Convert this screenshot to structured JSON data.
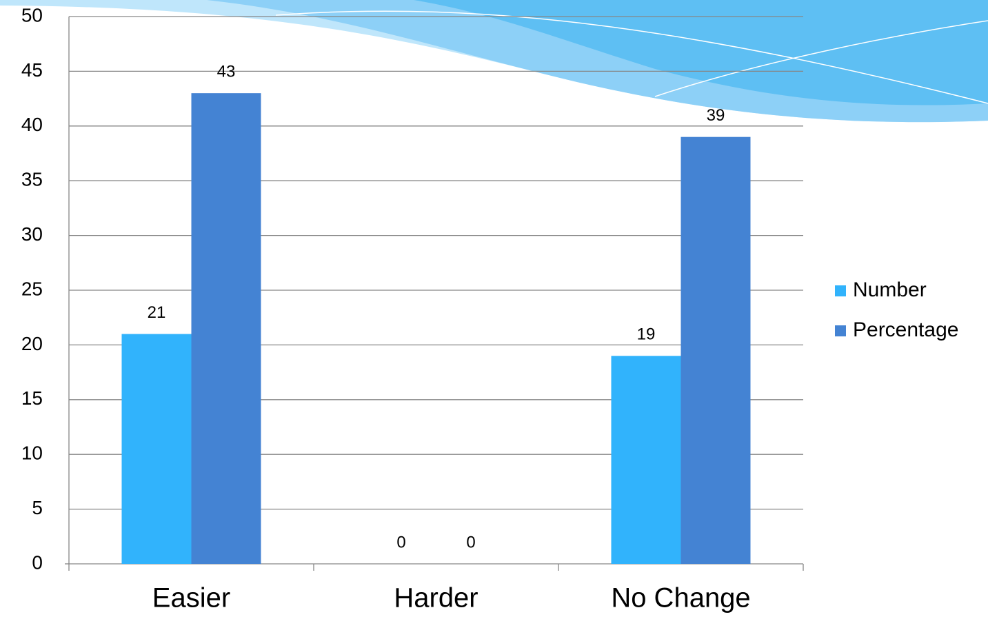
{
  "chart_data": {
    "type": "bar",
    "categories": [
      "Easier",
      "Harder",
      "No Change"
    ],
    "series": [
      {
        "name": "Number",
        "color": "#31b3fc",
        "values": [
          21,
          0,
          19
        ]
      },
      {
        "name": "Percentage",
        "color": "#4483d3",
        "values": [
          43,
          0,
          39
        ]
      }
    ],
    "ylim": [
      0,
      50
    ],
    "yticks": [
      0,
      5,
      10,
      15,
      20,
      25,
      30,
      35,
      40,
      45,
      50
    ],
    "grid": true,
    "legend": "right"
  }
}
